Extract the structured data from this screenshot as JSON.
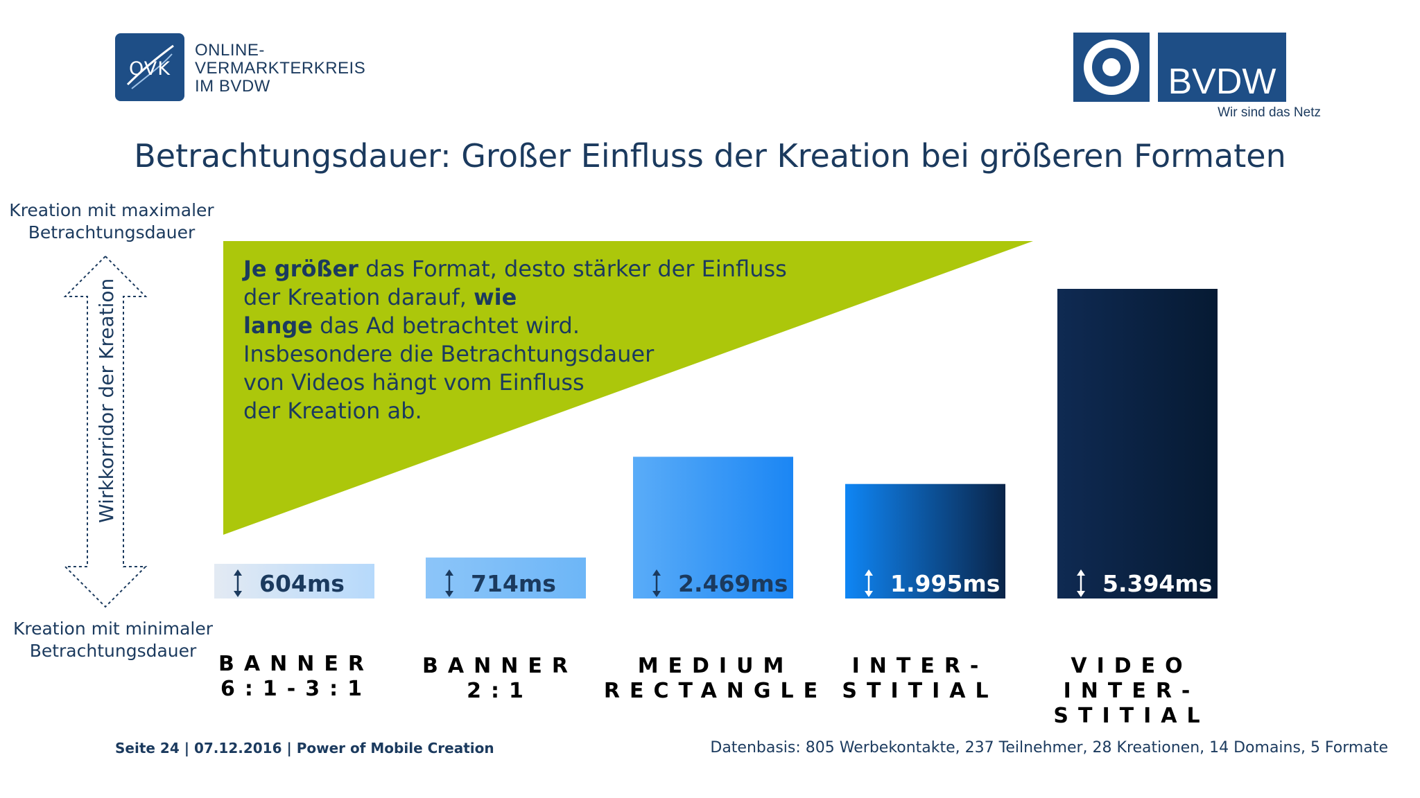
{
  "ovk_logo": {
    "mark": "OVK",
    "lines": [
      "ONLINE-",
      "VERMARKTERKREIS",
      "IM BVDW"
    ]
  },
  "bvdw_logo": {
    "name": "BVDW",
    "tagline": "Wir sind das Netz"
  },
  "title": "Betrachtungsdauer: Großer Einfluss der Kreation bei größeren Formaten",
  "side_labels": {
    "max": [
      "Kreation mit maximaler",
      "Betrachtungsdauer"
    ],
    "min": [
      "Kreation mit minimaler",
      "Betrachtungsdauer"
    ],
    "corridor": "Wirkkorridor der Kreation"
  },
  "callout": {
    "bold_1": "Je größer",
    "text_1": " das Format, desto stärker der Einfluss",
    "text_2": "der Kreation darauf, ",
    "bold_2": "wie",
    "bold_3": "lange",
    "text_3": " das Ad betrachtet wird.",
    "text_4": "Insbesondere die Betrachtungsdauer",
    "text_5": "von Videos hängt vom Einfluss",
    "text_6": "der Kreation ab."
  },
  "chart_data": {
    "type": "bar",
    "categories": [
      [
        "BANNER",
        "6:1-3:1"
      ],
      [
        "BANNER",
        "2:1"
      ],
      [
        "MEDIUM",
        "RECTANGLE"
      ],
      [
        "INTER-",
        "STITIAL"
      ],
      [
        "VIDEO",
        "INTER-",
        "STITIAL"
      ]
    ],
    "series": [
      {
        "values": [
          604,
          714,
          2469,
          1995,
          5394
        ]
      }
    ],
    "value_labels": [
      "604ms",
      "714ms",
      "2.469ms",
      "1.995ms",
      "5.394ms"
    ],
    "unit": "ms",
    "colors": {
      "bar_gradients": [
        [
          "#e3eaf3",
          "#b6d9fb"
        ],
        [
          "#8cc5f9",
          "#6db6f7"
        ],
        [
          "#5aacf8",
          "#1b86f4"
        ],
        [
          "#0f86f5",
          "#0a2448"
        ],
        [
          "#0f2a52",
          "#061a33"
        ]
      ],
      "value_text": [
        "#1b3a5e",
        "#1b3a5e",
        "#1b3a5e",
        "#ffffff",
        "#ffffff"
      ],
      "category_text": "#1a98b5",
      "callout_fill": "#acc70b"
    }
  },
  "footer": {
    "left": "Seite 24 | 07.12.2016 | Power of Mobile Creation",
    "right": "Datenbasis: 805 Werbekontakte, 237 Teilnehmer, 28 Kreationen, 14 Domains, 5 Formate"
  }
}
